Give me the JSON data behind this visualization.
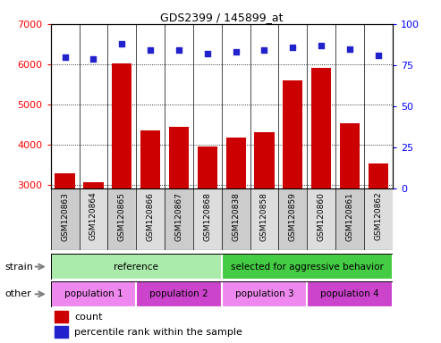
{
  "title": "GDS2399 / 145899_at",
  "samples": [
    "GSM120863",
    "GSM120864",
    "GSM120865",
    "GSM120866",
    "GSM120867",
    "GSM120868",
    "GSM120838",
    "GSM120858",
    "GSM120859",
    "GSM120860",
    "GSM120861",
    "GSM120862"
  ],
  "counts": [
    3280,
    3060,
    6020,
    4340,
    4430,
    3940,
    4170,
    4310,
    5600,
    5900,
    4520,
    3520
  ],
  "percentiles": [
    80,
    79,
    88,
    84,
    84,
    82,
    83,
    84,
    86,
    87,
    85,
    81
  ],
  "ylim_left": [
    2900,
    7000
  ],
  "ylim_right": [
    0,
    100
  ],
  "yticks_left": [
    3000,
    4000,
    5000,
    6000,
    7000
  ],
  "yticks_right": [
    0,
    25,
    50,
    75,
    100
  ],
  "bar_color": "#cc0000",
  "dot_color": "#2222cc",
  "strain_groups": [
    {
      "label": "reference",
      "start": 0,
      "end": 6,
      "color": "#aaeaaa"
    },
    {
      "label": "selected for aggressive behavior",
      "start": 6,
      "end": 12,
      "color": "#44cc44"
    }
  ],
  "other_groups": [
    {
      "label": "population 1",
      "start": 0,
      "end": 3,
      "color": "#ee88ee"
    },
    {
      "label": "population 2",
      "start": 3,
      "end": 6,
      "color": "#cc44cc"
    },
    {
      "label": "population 3",
      "start": 6,
      "end": 9,
      "color": "#ee88ee"
    },
    {
      "label": "population 4",
      "start": 9,
      "end": 12,
      "color": "#cc44cc"
    }
  ],
  "strain_label": "strain",
  "other_label": "other",
  "legend_count_label": "count",
  "legend_pct_label": "percentile rank within the sample",
  "col_colors": [
    "#cccccc",
    "#dddddd"
  ],
  "fig_bg": "#f5f5f5"
}
